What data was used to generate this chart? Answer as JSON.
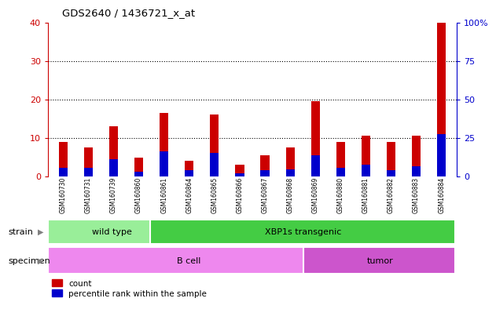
{
  "title": "GDS2640 / 1436721_x_at",
  "samples": [
    "GSM160730",
    "GSM160731",
    "GSM160739",
    "GSM160860",
    "GSM160861",
    "GSM160864",
    "GSM160865",
    "GSM160866",
    "GSM160867",
    "GSM160868",
    "GSM160869",
    "GSM160880",
    "GSM160881",
    "GSM160882",
    "GSM160883",
    "GSM160884"
  ],
  "count_values": [
    9.0,
    7.5,
    13.0,
    4.8,
    16.5,
    4.0,
    16.0,
    3.0,
    5.5,
    7.5,
    19.5,
    9.0,
    10.5,
    9.0,
    10.5,
    40.0
  ],
  "percentile_values": [
    2.2,
    2.2,
    4.5,
    1.2,
    6.5,
    1.5,
    6.0,
    0.8,
    1.5,
    1.8,
    5.5,
    2.2,
    3.0,
    1.5,
    2.5,
    11.0
  ],
  "bar_color_red": "#cc0000",
  "bar_color_blue": "#0000cc",
  "ylim_left": [
    0,
    40
  ],
  "ylim_right": [
    0,
    100
  ],
  "yticks_left": [
    0,
    10,
    20,
    30,
    40
  ],
  "ytick_labels_right": [
    "0",
    "25",
    "50",
    "75",
    "100%"
  ],
  "yticks_right": [
    0,
    25,
    50,
    75,
    100
  ],
  "strain_groups": [
    {
      "label": "wild type",
      "start": 0,
      "end": 4,
      "color": "#99ee99"
    },
    {
      "label": "XBP1s transgenic",
      "start": 4,
      "end": 15,
      "color": "#44cc44"
    }
  ],
  "specimen_groups": [
    {
      "label": "B cell",
      "start": 0,
      "end": 10,
      "color": "#ee88ee"
    },
    {
      "label": "tumor",
      "start": 10,
      "end": 15,
      "color": "#cc55cc"
    }
  ],
  "strain_label": "strain",
  "specimen_label": "specimen",
  "legend_count": "count",
  "legend_percentile": "percentile rank within the sample",
  "bg_color": "#cccccc",
  "plot_bg_color": "#ffffff",
  "grid_color": "#000000",
  "left_tick_color": "#cc0000",
  "right_tick_color": "#0000cc"
}
